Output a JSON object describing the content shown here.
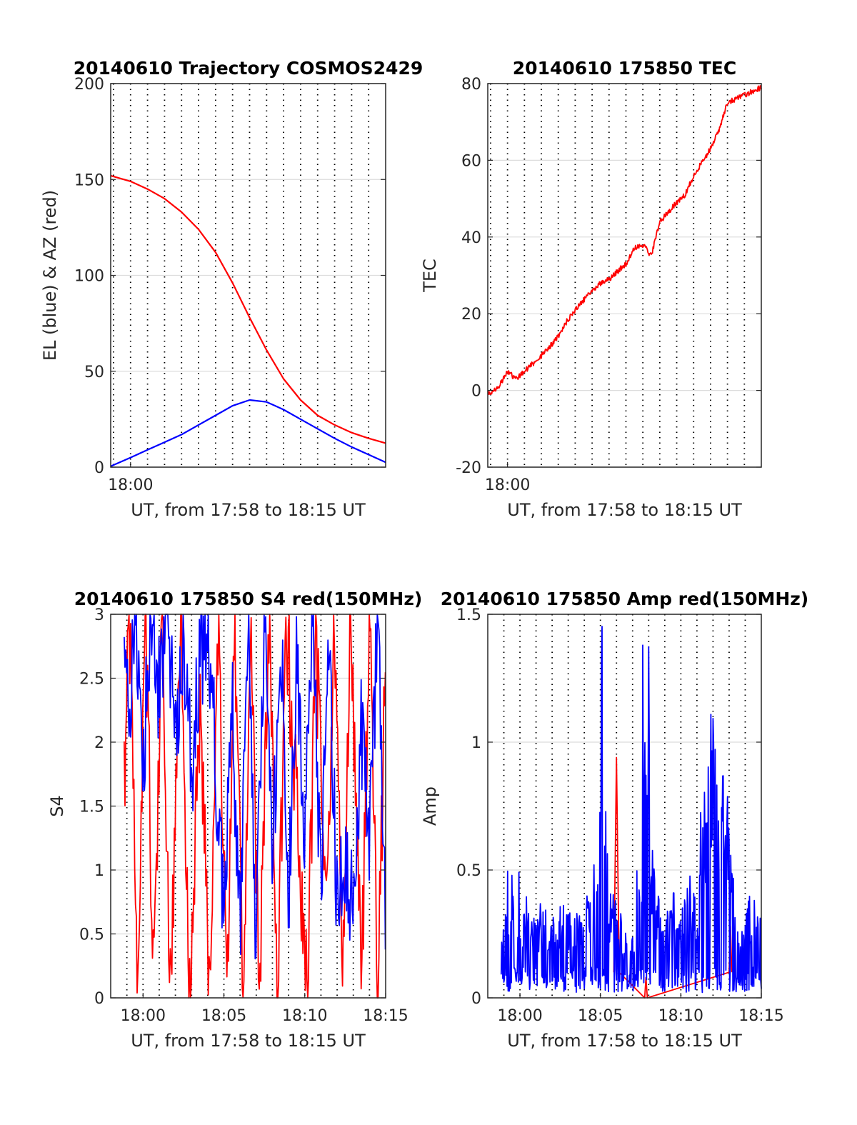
{
  "chart_data": [
    {
      "type": "line",
      "title": "20140610 Trajectory COSMOS2429",
      "xlabel": "UT, from 17:58 to 18:15 UT",
      "ylabel": "EL (blue) & AZ (red)",
      "xlim": [
        "17:58:50",
        "18:15:00"
      ],
      "ylim": [
        0,
        200
      ],
      "yticks": [
        "0",
        "50",
        "100",
        "150",
        "200"
      ],
      "xticks": [
        "18:00"
      ],
      "grid": true,
      "series": [
        {
          "color": "#ff0000",
          "x": [
            "17:58:50",
            "18:00:00",
            "18:01:00",
            "18:02:00",
            "18:03:00",
            "18:04:00",
            "18:05:00",
            "18:06:00",
            "18:07:00",
            "18:08:00",
            "18:09:00",
            "18:10:00",
            "18:11:00",
            "18:12:00",
            "18:13:00",
            "18:14:00",
            "18:15:00"
          ],
          "values": [
            152,
            149,
            145,
            140,
            133,
            124,
            112,
            96,
            78,
            61,
            46,
            35,
            27,
            22,
            18,
            15,
            12.5
          ]
        },
        {
          "color": "#0000ff",
          "x": [
            "17:58:50",
            "18:00:00",
            "18:01:00",
            "18:02:00",
            "18:03:00",
            "18:04:00",
            "18:05:00",
            "18:06:00",
            "18:07:00",
            "18:08:00",
            "18:09:00",
            "18:10:00",
            "18:11:00",
            "18:12:00",
            "18:13:00",
            "18:14:00",
            "18:15:00"
          ],
          "values": [
            0.5,
            5,
            9,
            13,
            17,
            22,
            27,
            32,
            35,
            34,
            30,
            25,
            20,
            15,
            10.5,
            6.5,
            2.5
          ]
        }
      ]
    },
    {
      "type": "line",
      "title": "20140610 175850 TEC",
      "xlabel": "UT, from 17:58 to 18:15 UT",
      "ylabel": "TEC",
      "xlim": [
        "17:58:50",
        "18:15:00"
      ],
      "ylim": [
        -20,
        80
      ],
      "yticks": [
        "-20",
        "0",
        "20",
        "40",
        "60",
        "80"
      ],
      "xticks": [
        "18:00"
      ],
      "grid": true,
      "series": [
        {
          "color": "#ff0000",
          "x": [
            "17:58:50",
            "17:59:30",
            "18:00:00",
            "18:00:30",
            "18:01:00",
            "18:02:00",
            "18:03:00",
            "18:03:30",
            "18:04:00",
            "18:05:00",
            "18:05:30",
            "18:06:00",
            "18:07:00",
            "18:07:30",
            "18:08:00",
            "18:08:30",
            "18:09:00",
            "18:10:00",
            "18:10:30",
            "18:11:00",
            "18:12:00",
            "18:12:30",
            "18:13:00",
            "18:14:00",
            "18:15:00"
          ],
          "values": [
            -1,
            1,
            5,
            3,
            5,
            9,
            14,
            18,
            21,
            26,
            28,
            29,
            33,
            37,
            38,
            35,
            44,
            49,
            51,
            56,
            63,
            68,
            75,
            77,
            79
          ]
        }
      ]
    },
    {
      "type": "line",
      "title": "20140610 175850 S4 red(150MHz)",
      "xlabel": "UT, from 17:58 to 18:15 UT",
      "ylabel": "S4",
      "xlim": [
        "17:58:00",
        "18:15:00"
      ],
      "ylim": [
        0,
        3
      ],
      "yticks": [
        "0",
        "0.5",
        "1",
        "1.5",
        "2",
        "2.5",
        "3"
      ],
      "xticks": [
        "18:00",
        "18:05",
        "18:10",
        "18:15"
      ],
      "grid": true,
      "series": [
        {
          "color": "#ff0000",
          "x": [
            "17:58:50",
            "17:59:10",
            "17:59:40",
            "18:00:10",
            "18:00:40",
            "18:01:10",
            "18:01:40",
            "18:02:20",
            "18:02:50",
            "18:03:30",
            "18:04:10",
            "18:04:40",
            "18:05:10",
            "18:05:40",
            "18:06:10",
            "18:06:40",
            "18:07:10",
            "18:07:50",
            "18:08:20",
            "18:08:50",
            "18:09:30",
            "18:10:10",
            "18:10:40",
            "18:11:20",
            "18:11:50",
            "18:12:20",
            "18:12:50",
            "18:13:30",
            "18:14:00",
            "18:14:30",
            "18:15:00"
          ],
          "values": [
            1.6,
            3,
            0,
            3,
            0,
            3,
            0,
            3,
            0,
            2.2,
            0,
            3,
            0,
            3,
            0,
            3,
            0,
            3,
            0,
            3,
            1.5,
            0,
            2.8,
            0.8,
            3,
            0,
            3,
            0,
            3,
            0,
            2.6
          ]
        },
        {
          "color": "#0000ff",
          "x": [
            "17:58:50",
            "17:59:10",
            "17:59:30",
            "18:00:00",
            "18:00:30",
            "18:01:00",
            "18:01:30",
            "18:02:00",
            "18:02:30",
            "18:03:00",
            "18:03:30",
            "18:04:00",
            "18:04:30",
            "18:05:00",
            "18:05:30",
            "18:06:00",
            "18:06:30",
            "18:07:00",
            "18:07:30",
            "18:08:00",
            "18:08:30",
            "18:09:00",
            "18:09:30",
            "18:10:00",
            "18:10:30",
            "18:11:00",
            "18:11:30",
            "18:12:00",
            "18:12:30",
            "18:13:00",
            "18:13:30",
            "18:14:00",
            "18:14:30",
            "18:15:00"
          ],
          "values": [
            3,
            2.2,
            3,
            1.9,
            2.8,
            2.4,
            3,
            2.0,
            2.9,
            1.7,
            2.6,
            3,
            1.8,
            0.6,
            2.4,
            0.5,
            2.9,
            0.4,
            3,
            1.0,
            3,
            0.8,
            2.7,
            1.3,
            3,
            0.8,
            3,
            0.6,
            1.1,
            0.6,
            2.1,
            1.2,
            3,
            0.4
          ]
        }
      ]
    },
    {
      "type": "line",
      "title": "20140610 175850 Amp red(150MHz)",
      "xlabel": "UT, from 17:58 to 18:15 UT",
      "ylabel": "Amp",
      "xlim": [
        "17:58:00",
        "18:15:00"
      ],
      "ylim": [
        0,
        1.5
      ],
      "yticks": [
        "0",
        "0.5",
        "1",
        "1.5"
      ],
      "xticks": [
        "18:00",
        "18:05",
        "18:10",
        "18:15"
      ],
      "grid": true,
      "series": [
        {
          "color": "#ff0000",
          "x": [
            "18:05:50",
            "18:06:00",
            "18:06:10",
            "18:07:45",
            "18:07:50",
            "18:07:55",
            "18:13:00",
            "18:13:05",
            "18:13:10"
          ],
          "values": [
            0.1,
            0.94,
            0.1,
            0.0,
            0.08,
            0.0,
            0.1,
            0.28,
            0.1
          ]
        },
        {
          "color": "#0000ff",
          "x": [
            "17:58:50",
            "17:59:30",
            "18:00:00",
            "18:00:30",
            "18:01:00",
            "18:02:00",
            "18:03:00",
            "18:04:00",
            "18:04:30",
            "18:04:50",
            "18:05:00",
            "18:05:10",
            "18:05:30",
            "18:06:00",
            "18:07:00",
            "18:07:30",
            "18:07:50",
            "18:08:00",
            "18:08:10",
            "18:08:30",
            "18:09:00",
            "18:09:30",
            "18:10:00",
            "18:10:20",
            "18:10:40",
            "18:11:00",
            "18:11:30",
            "18:12:00",
            "18:12:20",
            "18:12:40",
            "18:13:00",
            "18:13:30",
            "18:14:00",
            "18:14:30",
            "18:15:00"
          ],
          "values": [
            0.21,
            0.5,
            0.3,
            0.4,
            0.33,
            0.37,
            0.35,
            0.33,
            0.48,
            0.55,
            1.46,
            1.2,
            0.43,
            0.36,
            0.28,
            0.5,
            1.47,
            1.3,
            0.62,
            0.42,
            0.36,
            0.43,
            0.3,
            0.6,
            0.45,
            0.35,
            0.86,
            1.13,
            0.84,
            0.9,
            0.65,
            0.36,
            0.4,
            0.45,
            0.35
          ]
        }
      ]
    }
  ]
}
